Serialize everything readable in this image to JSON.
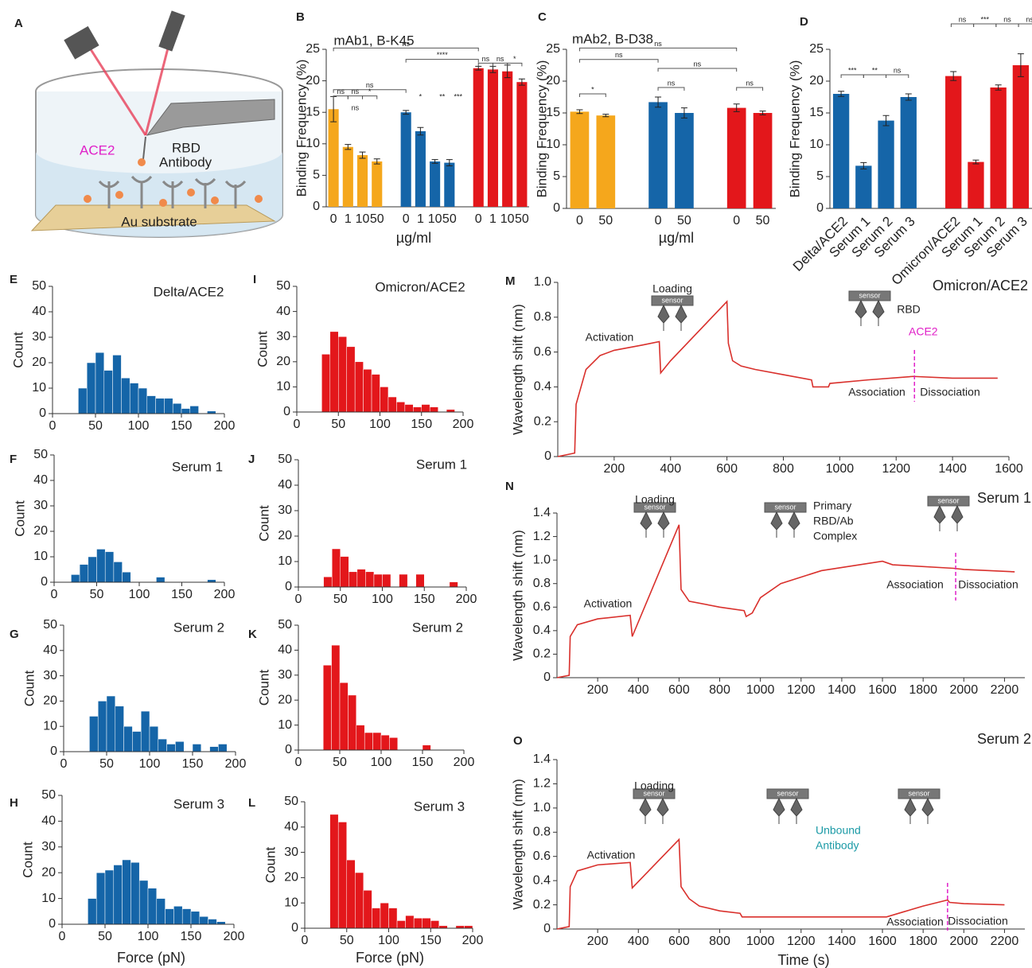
{
  "schematic": {
    "panel": "A",
    "labels": [
      "ACE2",
      "RBD",
      "Antibody",
      "Au substrate"
    ]
  },
  "chart_data": [
    {
      "panel": "B",
      "type": "bar",
      "title": "mAb1, B-K45",
      "ylabel": "Binding Frequency (%)",
      "xlabel": "µg/ml",
      "ylim": [
        0,
        25
      ],
      "yticks": [
        0,
        5,
        10,
        15,
        20,
        25
      ],
      "series": [
        {
          "color": "#f5a71c",
          "categories": [
            "0",
            "1",
            "10",
            "50"
          ],
          "values": [
            15.5,
            9.5,
            8.2,
            7.2
          ],
          "errors": [
            2,
            0.4,
            0.5,
            0.4
          ]
        },
        {
          "color": "#1565a8",
          "categories": [
            "0",
            "1",
            "10",
            "50"
          ],
          "values": [
            15,
            12,
            7.2,
            7
          ],
          "errors": [
            0.3,
            0.6,
            0.3,
            0.5
          ]
        },
        {
          "color": "#e3171b",
          "categories": [
            "0",
            "1",
            "10",
            "50"
          ],
          "values": [
            22,
            21.8,
            21.5,
            19.8
          ],
          "errors": [
            0.3,
            0.5,
            1,
            0.5
          ]
        }
      ],
      "annotations": [
        "ns",
        "****",
        "ns",
        "ns",
        "*",
        "ns",
        "ns",
        "ns",
        "*",
        "ns",
        "*",
        "**",
        "***"
      ]
    },
    {
      "panel": "C",
      "type": "bar",
      "title": "mAb2, B-D38",
      "ylabel": "Binding Frequency (%)",
      "xlabel": "µg/ml",
      "ylim": [
        0,
        25
      ],
      "yticks": [
        0,
        5,
        10,
        15,
        20,
        25
      ],
      "series": [
        {
          "color": "#f5a71c",
          "categories": [
            "0",
            "50"
          ],
          "values": [
            15.2,
            14.6
          ],
          "errors": [
            0.3,
            0.2
          ]
        },
        {
          "color": "#1565a8",
          "categories": [
            "0",
            "50"
          ],
          "values": [
            16.7,
            15
          ],
          "errors": [
            0.8,
            0.8
          ]
        },
        {
          "color": "#e3171b",
          "categories": [
            "0",
            "50"
          ],
          "values": [
            15.8,
            15
          ],
          "errors": [
            0.6,
            0.3
          ]
        }
      ],
      "annotations": [
        "ns",
        "ns",
        "ns",
        "*",
        "ns",
        "ns"
      ]
    },
    {
      "panel": "D",
      "type": "bar",
      "ylabel": "Binding Frequency (%)",
      "ylim": [
        0,
        25
      ],
      "yticks": [
        0,
        5,
        10,
        15,
        20,
        25
      ],
      "series": [
        {
          "color": "#1565a8",
          "categories": [
            "Delta/ACE2",
            "Serum 1",
            "Serum 2",
            "Serum 3"
          ],
          "values": [
            18,
            6.7,
            13.8,
            17.5
          ],
          "errors": [
            0.4,
            0.5,
            0.8,
            0.5
          ]
        },
        {
          "color": "#e3171b",
          "categories": [
            "Omicron/ACE2",
            "Serum 1",
            "Serum 2",
            "Serum 3"
          ],
          "values": [
            20.8,
            7.3,
            19,
            22.5
          ],
          "errors": [
            0.7,
            0.3,
            0.4,
            1.8
          ]
        }
      ],
      "annotations": [
        "***",
        "**",
        "ns",
        "ns",
        "***",
        "ns",
        "ns"
      ]
    },
    {
      "panel": "E",
      "type": "histogram",
      "title": "Delta/ACE2",
      "ylabel": "Count",
      "color": "#1565a8",
      "bins": [
        30,
        40,
        50,
        60,
        70,
        80,
        90,
        100,
        110,
        120,
        130,
        140,
        150,
        160,
        170,
        180,
        190
      ],
      "counts": [
        10,
        20,
        24,
        17,
        23,
        14,
        12,
        10,
        7,
        6,
        6,
        4,
        2,
        3,
        0,
        1
      ],
      "xlim": [
        0,
        200
      ],
      "xticks": [
        0,
        50,
        100,
        150,
        200
      ],
      "ylim": [
        0,
        50
      ],
      "yticks": [
        0,
        10,
        20,
        30,
        40,
        50
      ]
    },
    {
      "panel": "F",
      "type": "histogram",
      "title": "Serum 1",
      "ylabel": "Count",
      "color": "#1565a8",
      "bins": [
        20,
        30,
        40,
        50,
        60,
        70,
        80,
        90,
        100,
        110,
        120,
        130,
        140,
        150,
        160,
        170,
        180,
        190,
        200
      ],
      "counts": [
        3,
        7,
        10,
        13,
        12,
        8,
        4,
        0,
        0,
        0,
        2,
        0,
        0,
        0,
        0,
        0,
        1,
        0
      ],
      "xlim": [
        0,
        200
      ],
      "xticks": [
        0,
        50,
        100,
        150,
        200
      ],
      "ylim": [
        0,
        50
      ],
      "yticks": [
        0,
        10,
        20,
        30,
        40,
        50
      ]
    },
    {
      "panel": "G",
      "type": "histogram",
      "title": "Serum 2",
      "ylabel": "Count",
      "color": "#1565a8",
      "bins": [
        30,
        40,
        50,
        60,
        70,
        80,
        90,
        100,
        110,
        120,
        130,
        140,
        150,
        160,
        170,
        180,
        190
      ],
      "counts": [
        14,
        20,
        22,
        18,
        10,
        8,
        16,
        10,
        5,
        3,
        4,
        0,
        3,
        0,
        2,
        3
      ],
      "xlim": [
        0,
        200
      ],
      "xticks": [
        0,
        50,
        100,
        150,
        200
      ],
      "ylim": [
        0,
        50
      ],
      "yticks": [
        0,
        10,
        20,
        30,
        40,
        50
      ]
    },
    {
      "panel": "H",
      "type": "histogram",
      "title": "Serum 3",
      "ylabel": "Count",
      "xlabel": "Force (pN)",
      "color": "#1565a8",
      "bins": [
        30,
        40,
        50,
        60,
        70,
        80,
        90,
        100,
        110,
        120,
        130,
        140,
        150,
        160,
        170,
        180,
        190
      ],
      "counts": [
        10,
        20,
        21,
        23,
        25,
        24,
        17,
        14,
        10,
        6,
        7,
        6,
        5,
        3,
        2,
        1
      ],
      "xlim": [
        0,
        200
      ],
      "xticks": [
        0,
        50,
        100,
        150,
        200
      ],
      "ylim": [
        0,
        50
      ],
      "yticks": [
        0,
        10,
        20,
        30,
        40,
        50
      ]
    },
    {
      "panel": "I",
      "type": "histogram",
      "title": "Omicron/ACE2",
      "ylabel": "Count",
      "color": "#e3171b",
      "bins": [
        30,
        40,
        50,
        60,
        70,
        80,
        90,
        100,
        110,
        120,
        130,
        140,
        150,
        160,
        170,
        180,
        190
      ],
      "counts": [
        23,
        32,
        30,
        26,
        20,
        17,
        15,
        10,
        6,
        4,
        3,
        2,
        3,
        2,
        0,
        1
      ],
      "xlim": [
        0,
        200
      ],
      "xticks": [
        0,
        50,
        100,
        150,
        200
      ],
      "ylim": [
        0,
        50
      ],
      "yticks": [
        0,
        10,
        20,
        30,
        40,
        50
      ]
    },
    {
      "panel": "J",
      "type": "histogram",
      "title": "Serum 1",
      "ylabel": "Count",
      "color": "#e3171b",
      "bins": [
        30,
        40,
        50,
        60,
        70,
        80,
        90,
        100,
        110,
        120,
        130,
        140,
        150,
        160,
        170,
        180,
        190
      ],
      "counts": [
        4,
        15,
        12,
        6,
        7,
        6,
        5,
        5,
        0,
        5,
        0,
        5,
        0,
        0,
        0,
        2
      ],
      "xlim": [
        0,
        200
      ],
      "xticks": [
        0,
        50,
        100,
        150,
        200
      ],
      "ylim": [
        0,
        50
      ],
      "yticks": [
        0,
        10,
        20,
        30,
        40,
        50
      ]
    },
    {
      "panel": "K",
      "type": "histogram",
      "title": "Serum 2",
      "ylabel": "Count",
      "color": "#e3171b",
      "bins": [
        30,
        40,
        50,
        60,
        70,
        80,
        90,
        100,
        110,
        120,
        130,
        140,
        150,
        160,
        170,
        180,
        190
      ],
      "counts": [
        34,
        42,
        27,
        22,
        10,
        7,
        7,
        6,
        5,
        0,
        0,
        0,
        2,
        0,
        0,
        0
      ],
      "xlim": [
        0,
        200
      ],
      "xticks": [
        0,
        50,
        100,
        150,
        200
      ],
      "ylim": [
        0,
        50
      ],
      "yticks": [
        0,
        10,
        20,
        30,
        40,
        50
      ]
    },
    {
      "panel": "L",
      "type": "histogram",
      "title": "Serum 3",
      "ylabel": "Count",
      "xlabel": "Force (pN)",
      "color": "#e3171b",
      "bins": [
        30,
        40,
        50,
        60,
        70,
        80,
        90,
        100,
        110,
        120,
        130,
        140,
        150,
        160,
        170,
        180,
        190,
        200
      ],
      "counts": [
        45,
        42,
        27,
        22,
        15,
        8,
        10,
        8,
        3,
        5,
        4,
        4,
        3,
        1,
        0,
        1,
        1
      ],
      "xlim": [
        0,
        200
      ],
      "xticks": [
        0,
        50,
        100,
        150,
        200
      ],
      "ylim": [
        0,
        50
      ],
      "yticks": [
        0,
        10,
        20,
        30,
        40,
        50
      ]
    },
    {
      "panel": "M",
      "type": "line",
      "ylabel": "Wavelength shift (nm)",
      "icon_label": "sensor",
      "annotations": [
        "Omicron/ACE2",
        "Activation",
        "Loading",
        "RBD",
        "ACE2",
        "Association",
        "Dissociation"
      ],
      "x": [
        0,
        60,
        65,
        100,
        150,
        200,
        300,
        360,
        365,
        400,
        500,
        600,
        605,
        620,
        650,
        700,
        800,
        900,
        905,
        960,
        965,
        1100,
        1260,
        1400,
        1560
      ],
      "series": [
        {
          "color": "#d9302c",
          "values": [
            0,
            0.02,
            0.3,
            0.5,
            0.58,
            0.61,
            0.64,
            0.66,
            0.48,
            0.55,
            0.72,
            0.89,
            0.65,
            0.55,
            0.52,
            0.5,
            0.47,
            0.44,
            0.4,
            0.4,
            0.42,
            0.44,
            0.46,
            0.45,
            0.45
          ]
        }
      ],
      "vlines": [
        1265
      ],
      "xlim": [
        0,
        1600
      ],
      "xticks": [
        200,
        400,
        600,
        800,
        1000,
        1200,
        1400,
        1600
      ],
      "ylim": [
        0,
        1
      ],
      "yticks": [
        0,
        0.2,
        0.4,
        0.6,
        0.8,
        {
          "value": 1,
          "label": "1.0"
        }
      ]
    },
    {
      "panel": "N",
      "type": "line",
      "ylabel": "Wavelength shift (nm)",
      "icon_label": "sensor",
      "annotations": [
        "Serum 1",
        "Activation",
        "Loading",
        "Primary",
        "RBD/Ab",
        "Complex",
        "Association",
        "Dissociation"
      ],
      "x": [
        0,
        60,
        65,
        100,
        200,
        360,
        370,
        600,
        610,
        650,
        800,
        920,
        930,
        960,
        1000,
        1100,
        1300,
        1600,
        1650,
        1950,
        2000,
        2250
      ],
      "series": [
        {
          "color": "#d9302c",
          "values": [
            0,
            0.02,
            0.35,
            0.45,
            0.5,
            0.53,
            0.35,
            1.3,
            0.75,
            0.65,
            0.6,
            0.57,
            0.52,
            0.55,
            0.68,
            0.8,
            0.91,
            0.99,
            0.96,
            0.93,
            0.92,
            0.9
          ]
        }
      ],
      "vlines": [
        1960
      ],
      "xlim": [
        0,
        2300
      ],
      "xticks": [
        200,
        400,
        600,
        800,
        1000,
        1200,
        1400,
        1600,
        1800,
        2000,
        2200
      ],
      "ylim": [
        0,
        1.4
      ],
      "yticks": [
        0,
        0.2,
        0.4,
        0.6,
        0.8,
        {
          "value": 1,
          "label": "1.0"
        },
        1.2,
        1.4
      ]
    },
    {
      "panel": "O",
      "type": "line",
      "ylabel": "Wavelength shift (nm)",
      "xlabel": "Time (s)",
      "icon_label": "sensor",
      "annotations": [
        "Serum 2",
        "Activation",
        "Loading",
        "Unbound",
        "Antibody",
        "Association",
        "Dissociation"
      ],
      "x": [
        0,
        60,
        65,
        100,
        200,
        360,
        370,
        600,
        610,
        650,
        700,
        800,
        900,
        910,
        1200,
        1620,
        1700,
        1800,
        1920,
        1930,
        2000,
        2200
      ],
      "series": [
        {
          "color": "#d9302c",
          "values": [
            0,
            0.02,
            0.35,
            0.48,
            0.53,
            0.55,
            0.34,
            0.74,
            0.35,
            0.25,
            0.19,
            0.15,
            0.13,
            0.1,
            0.1,
            0.1,
            0.14,
            0.19,
            0.24,
            0.22,
            0.21,
            0.2
          ]
        }
      ],
      "vlines": [
        1920
      ],
      "xlim": [
        0,
        2300
      ],
      "xticks": [
        200,
        400,
        600,
        800,
        1000,
        1200,
        1400,
        1600,
        1800,
        2000,
        2200
      ],
      "ylim": [
        0,
        1.4
      ],
      "yticks": [
        0,
        0.2,
        0.4,
        0.6,
        0.8,
        {
          "value": 1,
          "label": "1.0"
        },
        1.2,
        1.4
      ]
    }
  ]
}
